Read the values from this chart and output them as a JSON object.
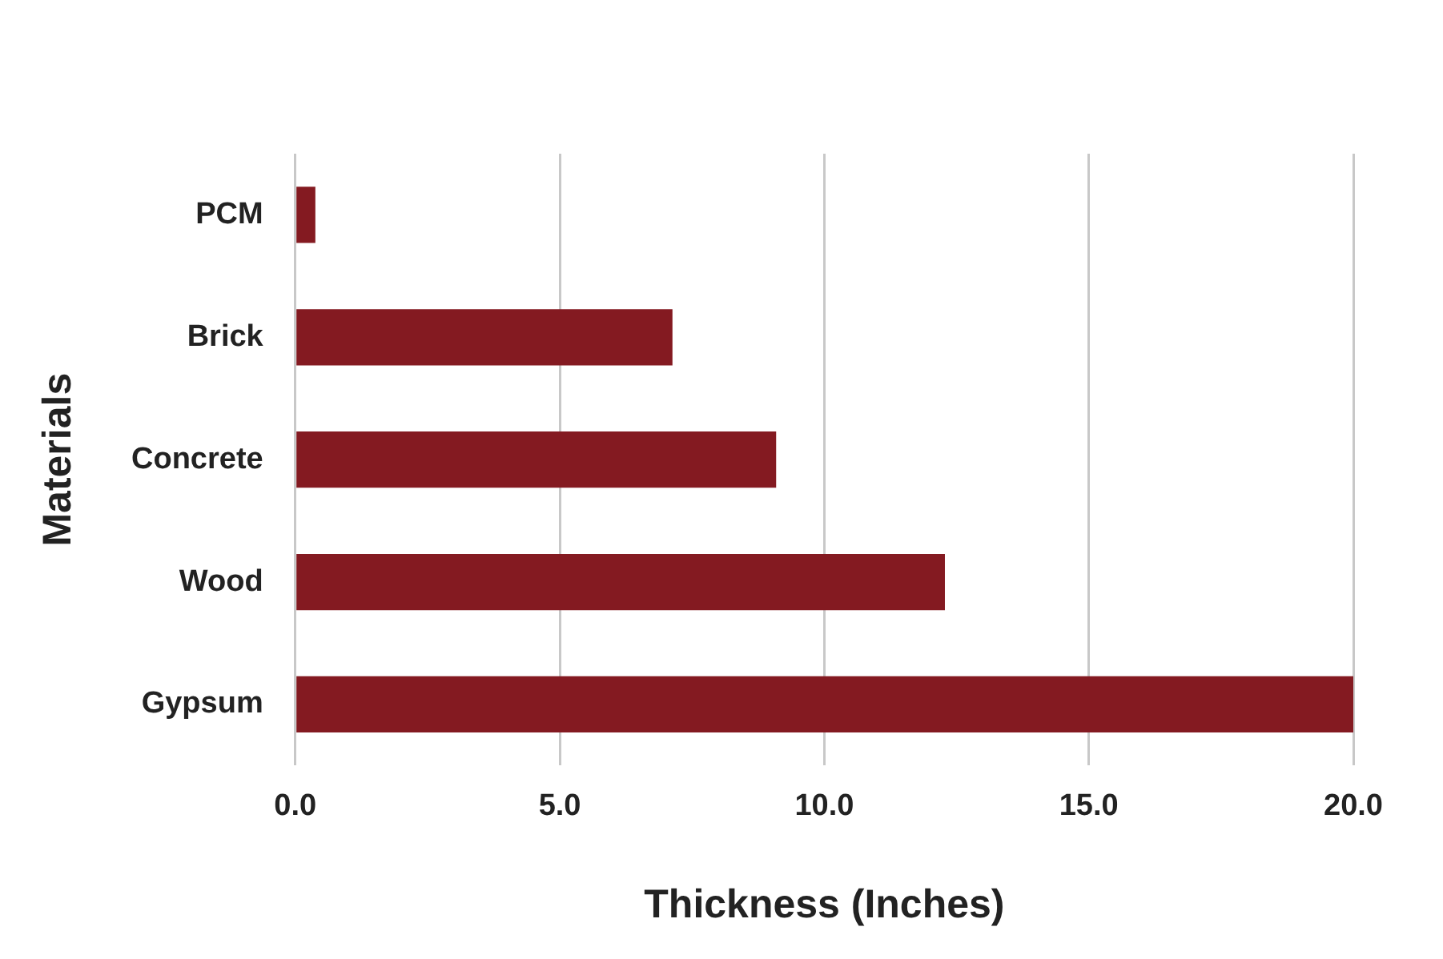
{
  "chart_data": {
    "type": "bar",
    "orientation": "horizontal",
    "xlabel": "Thickness (Inches)",
    "ylabel": "Materials",
    "categories": [
      "PCM",
      "Brick",
      "Concrete",
      "Wood",
      "Gypsum"
    ],
    "values": [
      0.38,
      7.13,
      9.09,
      12.28,
      20
    ],
    "color": "#841a21",
    "xlim": [
      0,
      20
    ],
    "xticks": [
      {
        "value": 0,
        "label": "0.0"
      },
      {
        "value": 5,
        "label": "5.0"
      },
      {
        "value": 10,
        "label": "10.0"
      },
      {
        "value": 15,
        "label": "15.0"
      },
      {
        "value": 20,
        "label": "20.0"
      }
    ],
    "grid": "x",
    "legend": false
  }
}
